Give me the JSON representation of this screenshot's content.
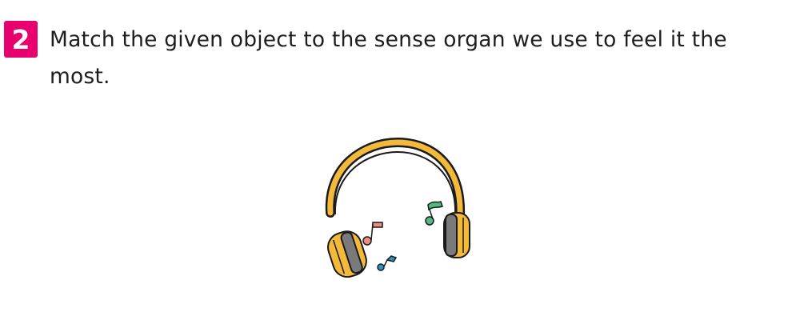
{
  "question": {
    "number": "2",
    "text": "Match the given object to the sense organ we use to feel it the most."
  },
  "illustration": {
    "object": "headphones",
    "colors": {
      "headband": "#f2b93b",
      "outline": "#1a1a1a",
      "cushion": "#7a7a7a",
      "note_pink": "#f08a7e",
      "note_green": "#4fba85",
      "note_blue": "#2c93c4"
    }
  }
}
